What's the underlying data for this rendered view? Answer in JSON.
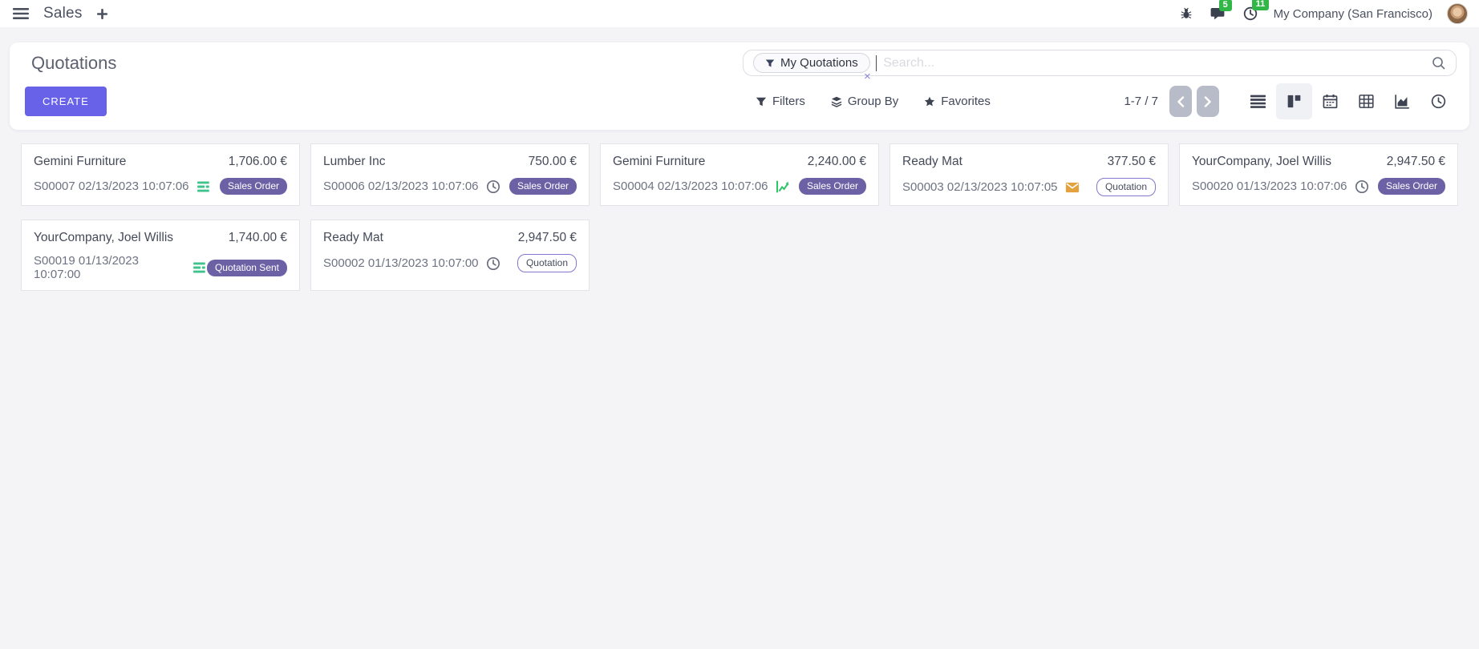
{
  "navbar": {
    "app_name": "Sales",
    "company": "My Company (San Francisco)",
    "messages_count": "5",
    "activities_count": "11"
  },
  "control_panel": {
    "title": "Quotations",
    "create_label": "CREATE",
    "search": {
      "facet_label": "My Quotations",
      "facet_remove": "×",
      "placeholder": "Search..."
    },
    "filters_label": "Filters",
    "group_by_label": "Group By",
    "favorites_label": "Favorites",
    "pager_text": "1-7 / 7"
  },
  "cards": [
    {
      "customer": "Gemini Furniture",
      "amount": "1,706.00 €",
      "ref": "S00007 02/13/2023 10:07:06",
      "activity_icon": "tasks-icon",
      "badge": "Sales Order",
      "badge_style": "filled"
    },
    {
      "customer": "Lumber Inc",
      "amount": "750.00 €",
      "ref": "S00006 02/13/2023 10:07:06",
      "activity_icon": "clock-icon",
      "badge": "Sales Order",
      "badge_style": "filled"
    },
    {
      "customer": "Gemini Furniture",
      "amount": "2,240.00 €",
      "ref": "S00004 02/13/2023 10:07:06",
      "activity_icon": "chart-increase-icon",
      "badge": "Sales Order",
      "badge_style": "filled"
    },
    {
      "customer": "Ready Mat",
      "amount": "377.50 €",
      "ref": "S00003 02/13/2023 10:07:05",
      "activity_icon": "envelope-icon",
      "badge": "Quotation",
      "badge_style": "outline"
    },
    {
      "customer": "YourCompany, Joel Willis",
      "amount": "2,947.50 €",
      "ref": "S00020 01/13/2023 10:07:06",
      "activity_icon": "clock-icon",
      "badge": "Sales Order",
      "badge_style": "filled"
    },
    {
      "customer": "YourCompany, Joel Willis",
      "amount": "1,740.00 €",
      "ref": "S00019 01/13/2023 10:07:00",
      "activity_icon": "tasks-icon",
      "badge": "Quotation Sent",
      "badge_style": "filled"
    },
    {
      "customer": "Ready Mat",
      "amount": "2,947.50 €",
      "ref": "S00002 01/13/2023 10:07:00",
      "activity_icon": "clock-icon",
      "badge": "Quotation",
      "badge_style": "outline"
    }
  ],
  "icons_used": [
    "menu-icon",
    "plus-icon",
    "bug-icon",
    "messages-icon",
    "activity-clock-icon",
    "filter-icon",
    "search-icon",
    "layers-icon",
    "star-icon",
    "chevron-left-icon",
    "chevron-right-icon",
    "list-view-icon",
    "kanban-view-icon",
    "calendar-view-icon",
    "pivot-view-icon",
    "graph-view-icon",
    "activity-view-icon",
    "tasks-icon",
    "clock-icon",
    "chart-increase-icon",
    "envelope-icon"
  ],
  "colors": {
    "primary": "#6862e8",
    "badge_purple": "#6d61a6",
    "outline_badge_purple": "#8177cf",
    "notification_green": "#31b747",
    "activity_green": "#3fc28c",
    "trend_green": "#2ec467",
    "envelope_orange": "#e3a23e"
  }
}
